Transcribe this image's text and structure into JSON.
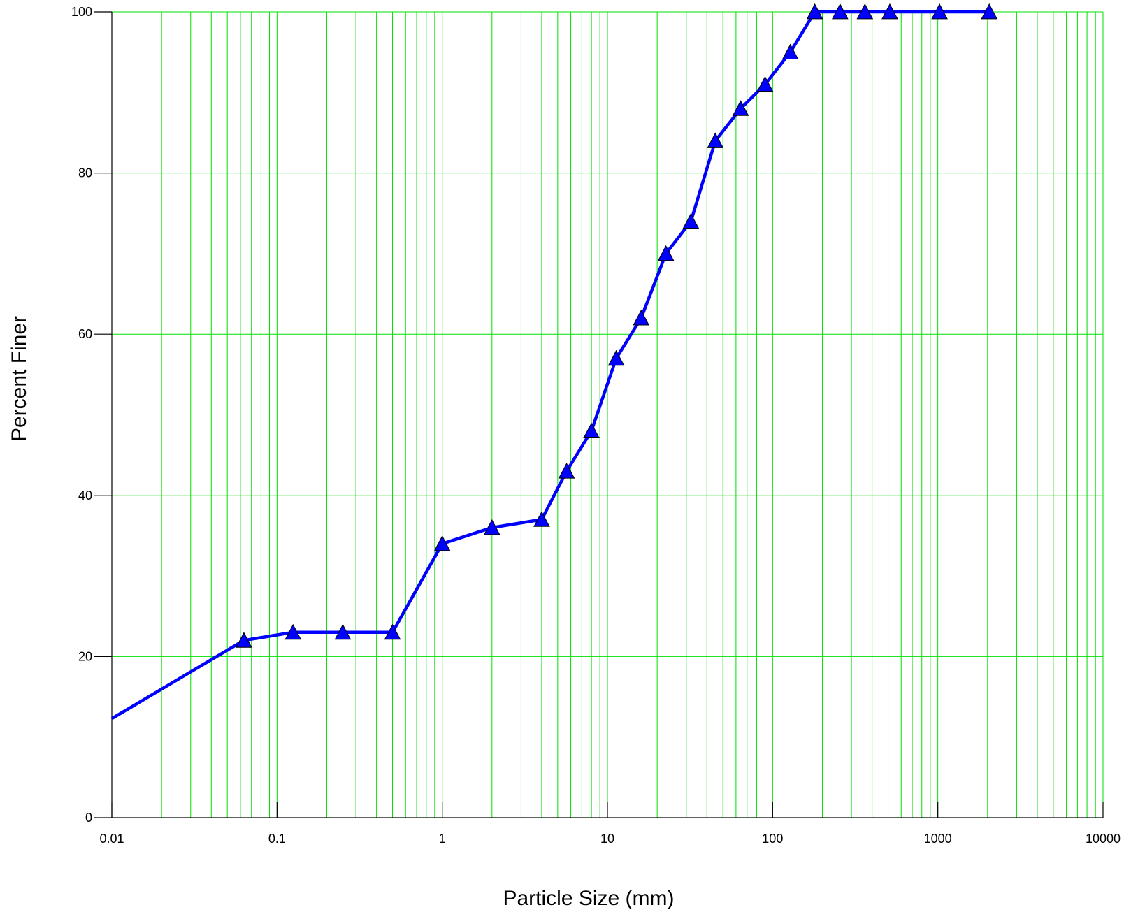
{
  "chart_data": {
    "type": "line",
    "xlabel": "Particle Size (mm)",
    "ylabel": "Percent Finer",
    "x_scale": "log",
    "xlim": [
      0.01,
      10000
    ],
    "ylim": [
      0,
      100
    ],
    "x_ticks": [
      0.01,
      0.1,
      1,
      10,
      100,
      1000,
      10000
    ],
    "x_tick_labels": [
      "0.01",
      "0.1",
      "1",
      "10",
      "100",
      "1000",
      "10000"
    ],
    "y_ticks": [
      0,
      20,
      40,
      60,
      80,
      100
    ],
    "y_tick_labels": [
      "0",
      "20",
      "40",
      "60",
      "80",
      "100"
    ],
    "grid": true,
    "grid_color": "#00e000",
    "series": [
      {
        "color": "#0000ff",
        "marker": "triangle",
        "line_start": {
          "x": 0.01,
          "y": 12.3
        },
        "points": [
          {
            "x": 0.063,
            "y": 22
          },
          {
            "x": 0.125,
            "y": 23
          },
          {
            "x": 0.25,
            "y": 23
          },
          {
            "x": 0.5,
            "y": 23
          },
          {
            "x": 1,
            "y": 34
          },
          {
            "x": 2,
            "y": 36
          },
          {
            "x": 4,
            "y": 37
          },
          {
            "x": 5.66,
            "y": 43
          },
          {
            "x": 8,
            "y": 48
          },
          {
            "x": 11.3,
            "y": 57
          },
          {
            "x": 16,
            "y": 62
          },
          {
            "x": 22.6,
            "y": 70
          },
          {
            "x": 32,
            "y": 74
          },
          {
            "x": 45,
            "y": 84
          },
          {
            "x": 64,
            "y": 88
          },
          {
            "x": 90,
            "y": 91
          },
          {
            "x": 128,
            "y": 95
          },
          {
            "x": 180,
            "y": 100
          },
          {
            "x": 256,
            "y": 100
          },
          {
            "x": 362,
            "y": 100
          },
          {
            "x": 512,
            "y": 100
          },
          {
            "x": 1024,
            "y": 100
          },
          {
            "x": 2048,
            "y": 100
          }
        ]
      }
    ]
  }
}
